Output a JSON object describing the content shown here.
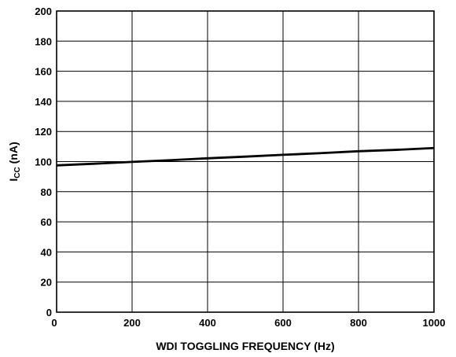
{
  "chart_data": {
    "type": "line",
    "title": "",
    "xlabel": "WDI TOGGLING FREQUENCY (Hz)",
    "ylabel": {
      "main": "I",
      "subscript": "CC",
      "suffix": " (nA)"
    },
    "xlim": [
      0,
      1000
    ],
    "ylim": [
      0,
      200
    ],
    "xticks": [
      0,
      200,
      400,
      600,
      800,
      1000
    ],
    "yticks": [
      0,
      20,
      40,
      60,
      80,
      100,
      120,
      140,
      160,
      180,
      200
    ],
    "grid": true,
    "line_color": "#000000",
    "series": [
      {
        "x": [
          0,
          100,
          200,
          300,
          400,
          500,
          600,
          700,
          800,
          900,
          1000
        ],
        "y": [
          97.5,
          98.6,
          99.8,
          100.9,
          102.2,
          103.3,
          104.5,
          105.6,
          106.9,
          107.8,
          109.0
        ]
      }
    ]
  }
}
